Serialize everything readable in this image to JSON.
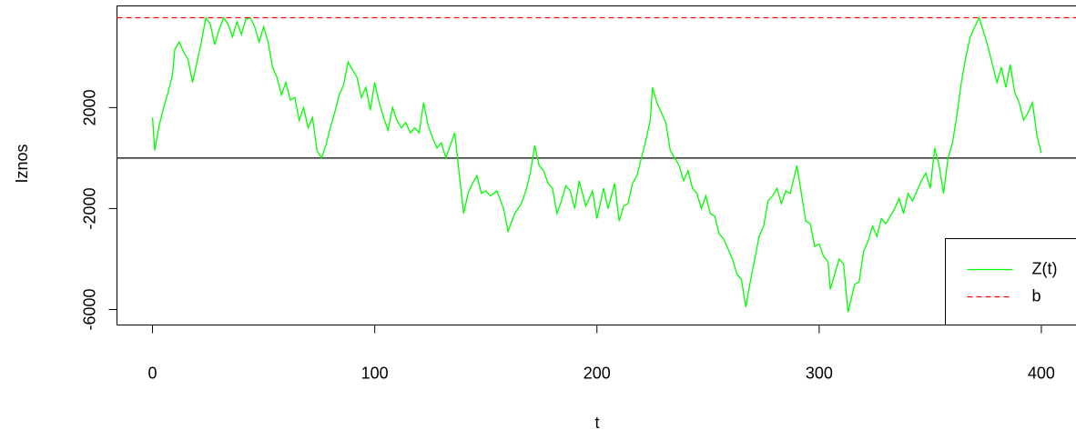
{
  "chart_data": {
    "type": "line",
    "x_label": "t",
    "y_label": "Iznos",
    "xlim": [
      -16,
      416
    ],
    "ylim": [
      -6613,
      6028
    ],
    "xticks": [
      0,
      100,
      200,
      300,
      400
    ],
    "yticks": [
      -6000,
      -2000,
      2000
    ],
    "hline": 0,
    "legend": "bottom-right",
    "x": [
      0,
      1,
      3,
      5,
      7,
      9,
      10,
      12,
      14,
      16,
      18,
      20,
      22,
      24,
      26,
      28,
      30,
      32,
      34,
      36,
      38,
      40,
      42,
      44,
      46,
      48,
      50,
      52,
      54,
      56,
      58,
      60,
      62,
      64,
      66,
      68,
      70,
      72,
      74,
      76,
      78,
      80,
      82,
      84,
      86,
      88,
      90,
      92,
      94,
      96,
      98,
      100,
      102,
      104,
      106,
      108,
      110,
      112,
      114,
      116,
      118,
      120,
      122,
      124,
      126,
      128,
      130,
      132,
      134,
      136,
      138,
      140,
      142,
      144,
      146,
      148,
      150,
      152,
      155,
      158,
      160,
      163,
      166,
      168,
      170,
      172,
      174,
      176,
      178,
      180,
      182,
      184,
      186,
      188,
      190,
      192,
      195,
      198,
      200,
      203,
      205,
      208,
      210,
      212,
      214,
      216,
      218,
      220,
      222,
      224,
      225,
      227,
      229,
      231,
      233,
      235,
      237,
      239,
      241,
      243,
      245,
      247,
      249,
      251,
      253,
      255,
      257,
      259,
      261,
      263,
      265,
      267,
      269,
      271,
      273,
      275,
      277,
      279,
      281,
      283,
      285,
      287,
      290,
      292,
      294,
      296,
      298,
      300,
      302,
      304,
      305,
      307,
      309,
      311,
      313,
      316,
      318,
      320,
      322,
      324,
      326,
      328,
      330,
      332,
      334,
      336,
      338,
      340,
      342,
      344,
      346,
      348,
      350,
      352,
      354,
      356,
      358,
      360,
      362,
      364,
      366,
      368,
      370,
      372,
      374,
      376,
      378,
      380,
      382,
      384,
      386,
      388,
      390,
      392,
      394,
      396,
      398,
      400
    ],
    "series": [
      {
        "name": "Z(t)",
        "color": "#00ff00",
        "linestyle": "solid",
        "values": [
          1600,
          300,
          1300,
          2000,
          2600,
          3300,
          4300,
          4600,
          4200,
          3900,
          3000,
          3800,
          4600,
          5560,
          5300,
          4500,
          5100,
          5560,
          5300,
          4800,
          5400,
          4900,
          5500,
          5560,
          5200,
          4600,
          5200,
          4600,
          3600,
          3200,
          2500,
          3000,
          2300,
          2400,
          1500,
          2000,
          1200,
          1600,
          300,
          0,
          500,
          1200,
          1800,
          2500,
          2900,
          3800,
          3500,
          3200,
          2400,
          2800,
          1900,
          3000,
          2200,
          1600,
          1100,
          2000,
          1500,
          1200,
          1400,
          1000,
          1200,
          1000,
          2200,
          1300,
          800,
          400,
          600,
          0,
          500,
          1000,
          -600,
          -2200,
          -1400,
          -1000,
          -700,
          -1400,
          -1300,
          -1500,
          -1300,
          -2000,
          -2900,
          -2200,
          -1800,
          -1300,
          -600,
          500,
          -300,
          -500,
          -1000,
          -1200,
          -2200,
          -1700,
          -1100,
          -1300,
          -2000,
          -900,
          -1900,
          -1300,
          -2400,
          -1200,
          -2000,
          -1000,
          -2500,
          -1900,
          -1800,
          -1000,
          -700,
          0,
          700,
          1500,
          2800,
          2200,
          1800,
          1400,
          300,
          0,
          -300,
          -900,
          -500,
          -1200,
          -1400,
          -2000,
          -1500,
          -2200,
          -2300,
          -3000,
          -3200,
          -3600,
          -4000,
          -4600,
          -4800,
          -5900,
          -4900,
          -4000,
          -3100,
          -2700,
          -1700,
          -1500,
          -1200,
          -1800,
          -1300,
          -1400,
          -300,
          -1400,
          -2500,
          -2600,
          -3500,
          -3400,
          -3900,
          -4100,
          -5200,
          -4600,
          -4000,
          -4200,
          -6100,
          -5000,
          -4900,
          -3700,
          -3300,
          -2700,
          -3100,
          -2400,
          -2600,
          -2300,
          -2000,
          -1600,
          -2200,
          -1400,
          -1700,
          -1300,
          -900,
          -600,
          -1200,
          400,
          -300,
          -1400,
          0,
          600,
          1700,
          3000,
          4000,
          4800,
          5200,
          5560,
          5000,
          4400,
          3700,
          3000,
          3600,
          2800,
          3700,
          2600,
          2200,
          1500,
          1800,
          2200,
          900,
          200
        ]
      },
      {
        "name": "b",
        "color": "#ff0000",
        "linestyle": "dashed",
        "value": 5560
      }
    ]
  }
}
